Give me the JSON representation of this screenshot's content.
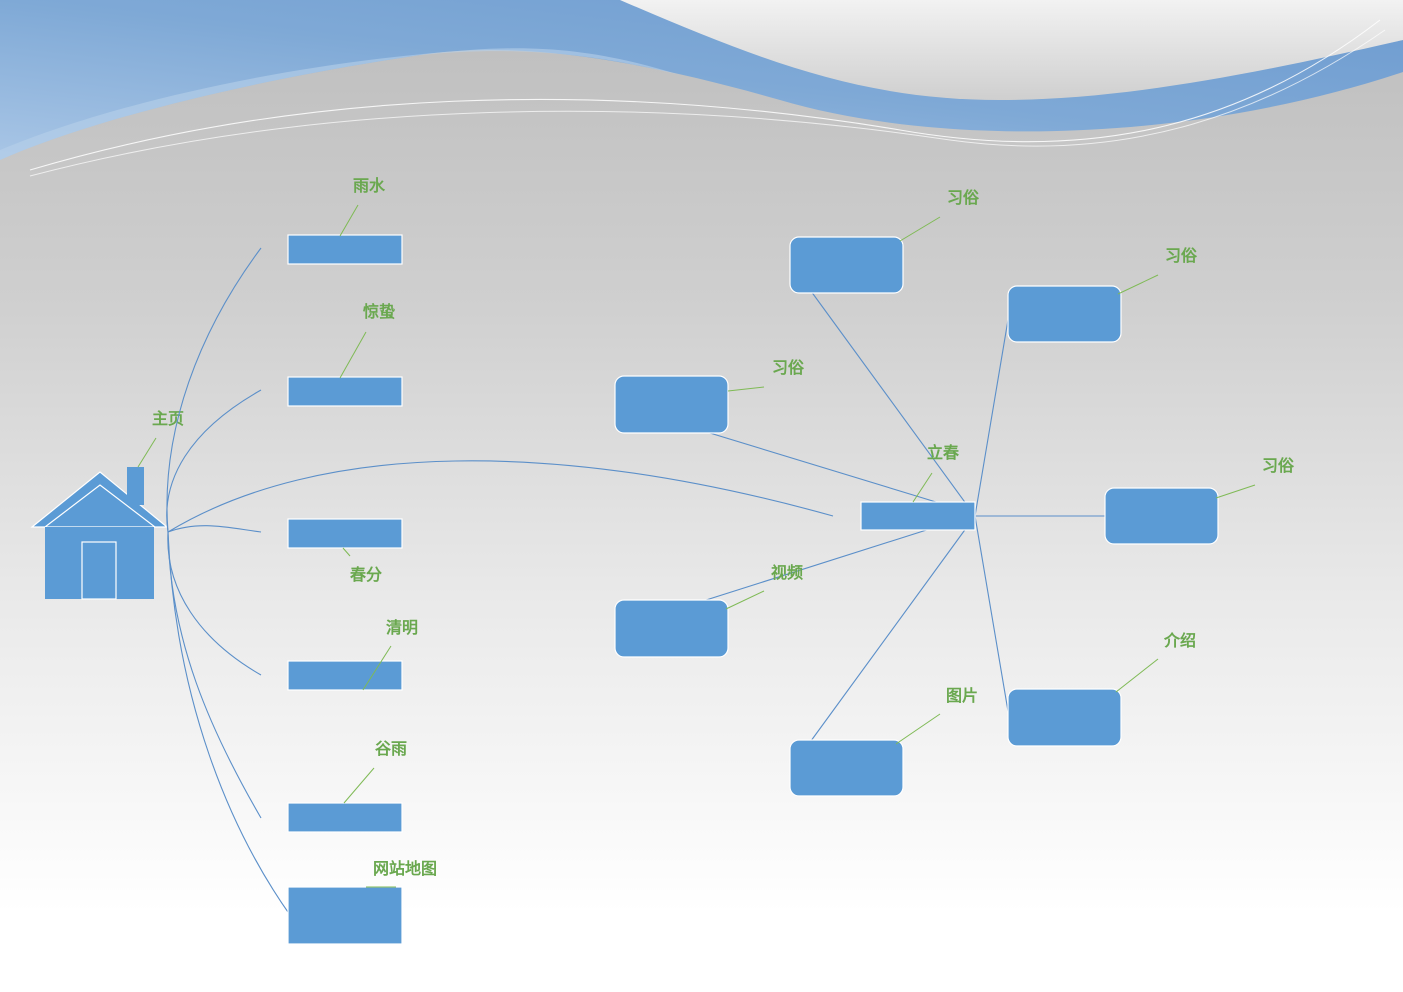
{
  "colors": {
    "node": "#5b9bd5",
    "label": "#6aa84f",
    "connector": "#5b8fc9",
    "callout": "#7fba55"
  },
  "home": {
    "label": "主页",
    "icon": "house-icon"
  },
  "left_nodes": [
    {
      "label": "雨水"
    },
    {
      "label": "惊蛰"
    },
    {
      "label": "春分"
    },
    {
      "label": "清明"
    },
    {
      "label": "谷雨"
    },
    {
      "label": "网站地图"
    }
  ],
  "hub": {
    "label": "立春"
  },
  "hub_children": [
    {
      "label": "习俗"
    },
    {
      "label": "习俗"
    },
    {
      "label": "习俗"
    },
    {
      "label": "习俗"
    },
    {
      "label": "视频"
    },
    {
      "label": "图片"
    },
    {
      "label": "介绍"
    }
  ]
}
